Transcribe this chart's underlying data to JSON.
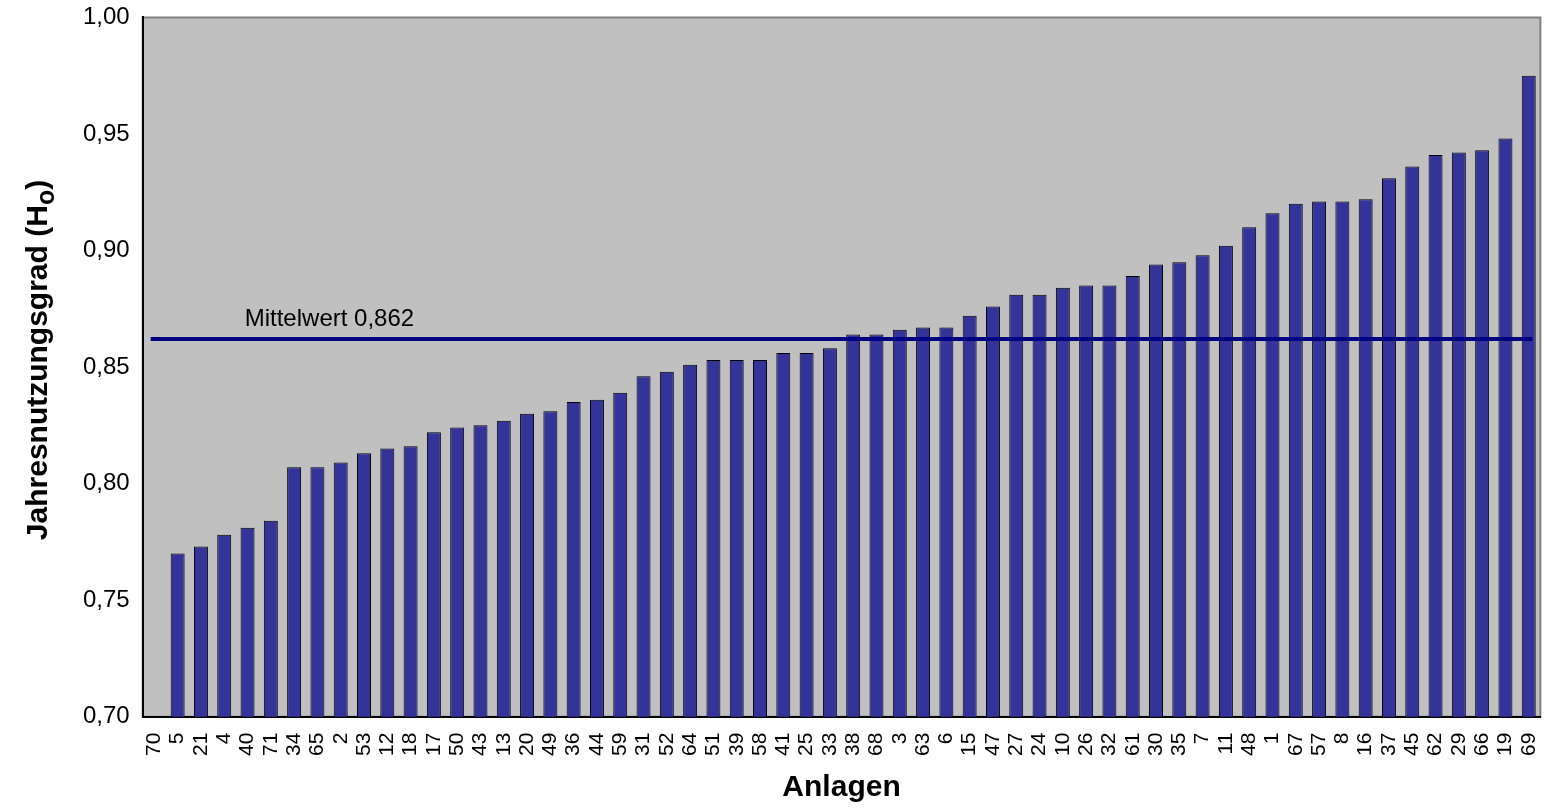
{
  "chart_data": {
    "type": "bar",
    "xlabel": "Anlagen",
    "ylabel": "Jahresnutzungsgrad (H$_{o}$)",
    "categories": [
      "70",
      "5",
      "21",
      "4",
      "40",
      "71",
      "34",
      "65",
      "2",
      "53",
      "12",
      "18",
      "17",
      "50",
      "43",
      "13",
      "20",
      "49",
      "36",
      "44",
      "59",
      "31",
      "52",
      "64",
      "51",
      "39",
      "58",
      "41",
      "25",
      "33",
      "38",
      "68",
      "3",
      "63",
      "6",
      "15",
      "47",
      "27",
      "24",
      "10",
      "26",
      "32",
      "61",
      "30",
      "35",
      "7",
      "11",
      "48",
      "1",
      "67",
      "57",
      "8",
      "16",
      "37",
      "45",
      "62",
      "29",
      "66",
      "19",
      "69"
    ],
    "values": [
      null,
      0.77,
      0.773,
      0.778,
      0.781,
      0.784,
      0.807,
      0.807,
      0.809,
      0.813,
      0.815,
      0.816,
      0.822,
      0.824,
      0.825,
      0.827,
      0.83,
      0.831,
      0.835,
      0.836,
      0.839,
      0.846,
      0.848,
      0.851,
      0.853,
      0.853,
      0.853,
      0.856,
      0.856,
      0.858,
      0.864,
      0.864,
      0.866,
      0.867,
      0.867,
      0.872,
      0.876,
      0.881,
      0.881,
      0.884,
      0.885,
      0.885,
      0.889,
      0.894,
      0.895,
      0.898,
      0.902,
      0.91,
      0.916,
      0.92,
      0.921,
      0.921,
      0.922,
      0.931,
      0.936,
      0.941,
      0.942,
      0.943,
      0.948,
      0.975
    ],
    "color": "#333399",
    "ylim": [
      0.7,
      1.0
    ],
    "yticks": [
      {
        "value": 0.7,
        "label": "0,70"
      },
      {
        "value": 0.75,
        "label": "0,75"
      },
      {
        "value": 0.8,
        "label": "0,80"
      },
      {
        "value": 0.85,
        "label": "0,85"
      },
      {
        "value": 0.9,
        "label": "0,90"
      },
      {
        "value": 0.95,
        "label": "0,95"
      },
      {
        "value": 1.0,
        "label": "1,00"
      }
    ],
    "ref_lines": [
      {
        "axis": "y",
        "value": 0.862,
        "label": "Mittelwert 0,862",
        "color": "#000080"
      }
    ],
    "grid": false,
    "legend": false
  }
}
